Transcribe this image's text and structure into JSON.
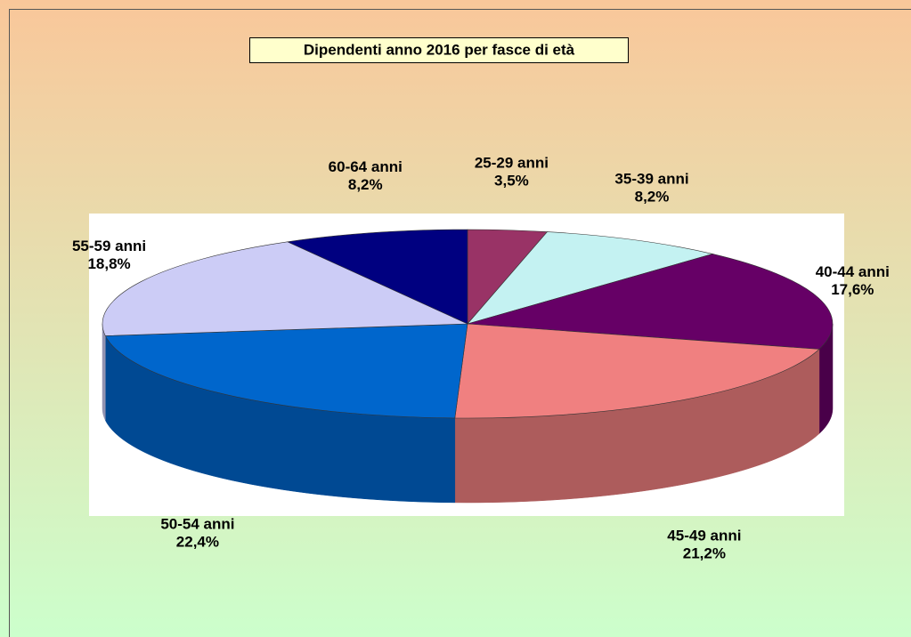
{
  "chart_data": {
    "type": "pie",
    "title": "Dipendenti anno 2016 per fasce di età",
    "categories": [
      "25-29 anni",
      "35-39 anni",
      "40-44 anni",
      "45-49 anni",
      "50-54 anni",
      "55-59 anni",
      "60-64 anni"
    ],
    "values": [
      3.5,
      8.2,
      17.6,
      21.2,
      22.4,
      18.8,
      8.2
    ],
    "value_labels": [
      "3,5%",
      "8,2%",
      "17,6%",
      "21,2%",
      "22,4%",
      "18,8%",
      "8,2%"
    ],
    "colors": [
      "#993366",
      "#c4f2f2",
      "#660066",
      "#f08080",
      "#0066cc",
      "#ccccf6",
      "#000080"
    ]
  }
}
